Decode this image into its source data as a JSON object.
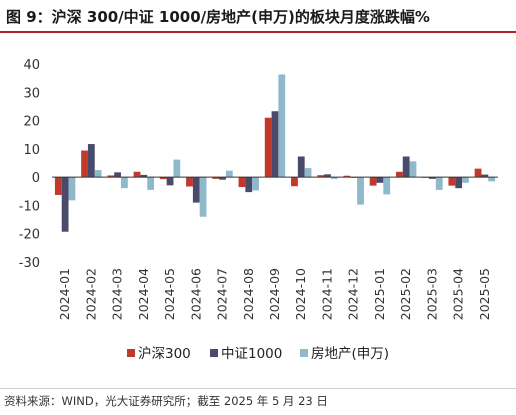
{
  "title": "图 9：沪深 300/中证 1000/房地产(申万)的板块月度涨跌幅%",
  "source": "资料来源：WIND，光大证券研究所；截至 2025 年 5 月 23 日",
  "chart_data": {
    "type": "bar",
    "title": "图 9：沪深 300/中证 1000/房地产(申万)的板块月度涨跌幅%",
    "xlabel": "",
    "ylabel": "",
    "ylim": [
      -30,
      40
    ],
    "yticks": [
      -30,
      -20,
      -10,
      0,
      10,
      20,
      30,
      40
    ],
    "grid": false,
    "legend_position": "bottom",
    "categories": [
      "2024-01",
      "2024-02",
      "2024-03",
      "2024-04",
      "2024-05",
      "2024-06",
      "2024-07",
      "2024-08",
      "2024-09",
      "2024-10",
      "2024-11",
      "2024-12",
      "2025-01",
      "2025-02",
      "2025-03",
      "2025-04",
      "2025-05"
    ],
    "series": [
      {
        "name": "沪深300",
        "color": "#c0392b",
        "values": [
          -6.3,
          9.4,
          0.6,
          1.9,
          -0.7,
          -3.3,
          -0.6,
          -3.5,
          21.0,
          -3.2,
          0.7,
          0.5,
          -3.0,
          1.9,
          -0.1,
          -3.0,
          3.0
        ]
      },
      {
        "name": "中证1000",
        "color": "#4a4a6a",
        "values": [
          -19.3,
          11.7,
          1.7,
          0.8,
          -2.9,
          -9.0,
          -0.9,
          -5.3,
          23.3,
          7.3,
          1.0,
          0.0,
          -2.0,
          7.3,
          -0.6,
          -3.9,
          0.9
        ]
      },
      {
        "name": "房地产(申万)",
        "color": "#8fb8ca",
        "values": [
          -8.2,
          2.5,
          -3.9,
          -4.5,
          6.2,
          -14.0,
          2.3,
          -4.7,
          36.3,
          3.2,
          -0.6,
          -9.7,
          -6.1,
          5.6,
          -4.5,
          -2.0,
          -1.5
        ]
      }
    ]
  }
}
